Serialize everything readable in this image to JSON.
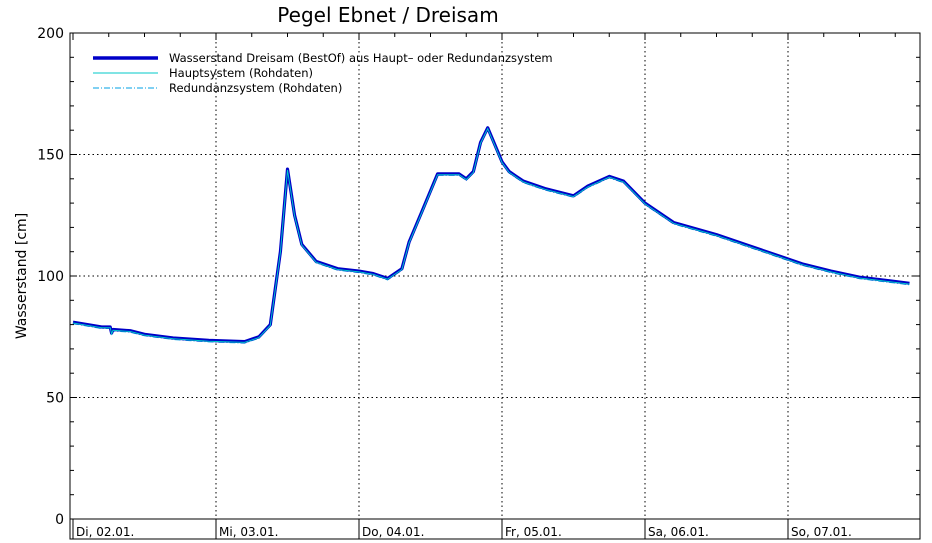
{
  "chart_data": {
    "type": "line",
    "title": "Pegel Ebnet / Dreisam",
    "ylabel": "Wasserstand [cm]",
    "xlabel": "",
    "ylim": [
      0,
      200
    ],
    "yticks": [
      0,
      50,
      100,
      150,
      200
    ],
    "xlim": [
      "2024-01-02 00:00",
      "2024-01-07 23:59"
    ],
    "xticks": [
      "Di, 02.01.",
      "Mi, 03.01.",
      "Do, 04.01.",
      "Fr, 05.01.",
      "Sa, 06.01.",
      "So, 07.01."
    ],
    "grid": true,
    "legend_position": "top-left",
    "colors": {
      "bestof": "#0000c8",
      "haupt": "#00c8c8",
      "redundanz": "#00a0e6"
    },
    "series": [
      {
        "name": "Wasserstand Dreisam  (BestOf) aus Haupt– oder Redundanzsystem",
        "style": "thick-solid",
        "color": "#0000c8"
      },
      {
        "name": "Hauptsystem (Rohdaten)",
        "style": "thin-solid",
        "color": "#00c8c8"
      },
      {
        "name": "Redundanzsystem (Rohdaten)",
        "style": "dash-dot",
        "color": "#00a0e6"
      }
    ],
    "x_days": [
      0.0,
      0.1,
      0.2,
      0.26,
      0.27,
      0.28,
      0.4,
      0.5,
      0.7,
      0.95,
      1.2,
      1.3,
      1.38,
      1.45,
      1.5,
      1.55,
      1.6,
      1.7,
      1.85,
      2.0,
      2.1,
      2.2,
      2.3,
      2.35,
      2.45,
      2.55,
      2.7,
      2.75,
      2.8,
      2.85,
      2.9,
      3.0,
      3.05,
      3.1,
      3.15,
      3.3,
      3.5,
      3.6,
      3.75,
      3.85,
      4.0,
      4.2,
      4.5,
      4.7,
      4.9,
      5.1,
      5.3,
      5.5,
      5.85
    ],
    "values": [
      81,
      80,
      79,
      79,
      76.5,
      78,
      77.5,
      76,
      74.5,
      73.5,
      73,
      75,
      80,
      110,
      144,
      125,
      113,
      106,
      103,
      102,
      101,
      99,
      103,
      114,
      128,
      142,
      142,
      140,
      143,
      155,
      161,
      147,
      143,
      141,
      139,
      136,
      133,
      137,
      141,
      139,
      130,
      122,
      117,
      113,
      109,
      105,
      102,
      99.5,
      97
    ]
  }
}
